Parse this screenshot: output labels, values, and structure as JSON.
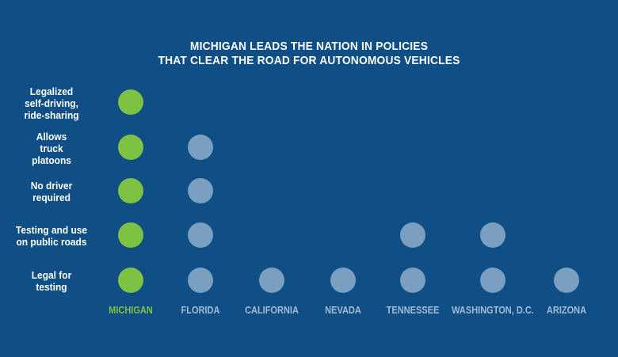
{
  "title_line1": "MICHIGAN LEADS THE NATION IN POLICIES",
  "title_line2": "THAT CLEAR THE ROAD FOR AUTONOMOUS VEHICLES",
  "colors": {
    "background": "#0f4f85",
    "green": "#7dc242",
    "gray": "#7a9fc0",
    "michigan_label": "#7dc242",
    "state_label": "#9fbbd6"
  },
  "chart_data": {
    "type": "table",
    "rows": [
      {
        "label_lines": [
          "Legalized",
          "self-driving,",
          "ride-sharing"
        ],
        "states": [
          "MICHIGAN"
        ]
      },
      {
        "label_lines": [
          "Allows",
          "truck",
          "platoons"
        ],
        "states": [
          "MICHIGAN",
          "FLORIDA"
        ]
      },
      {
        "label_lines": [
          "No driver",
          "required"
        ],
        "states": [
          "MICHIGAN",
          "FLORIDA"
        ]
      },
      {
        "label_lines": [
          "Testing and use",
          "on public roads"
        ],
        "states": [
          "MICHIGAN",
          "FLORIDA",
          "TENNESSEE",
          "WASHINGTON, D.C."
        ]
      },
      {
        "label_lines": [
          "Legal for",
          "testing"
        ],
        "states": [
          "MICHIGAN",
          "FLORIDA",
          "CALIFORNIA",
          "NEVADA",
          "TENNESSEE",
          "WASHINGTON, D.C.",
          "ARIZONA"
        ]
      }
    ],
    "columns": [
      "MICHIGAN",
      "FLORIDA",
      "CALIFORNIA",
      "NEVADA",
      "TENNESSEE",
      "WASHINGTON, D.C.",
      "ARIZONA"
    ],
    "highlight_column": "MICHIGAN"
  }
}
